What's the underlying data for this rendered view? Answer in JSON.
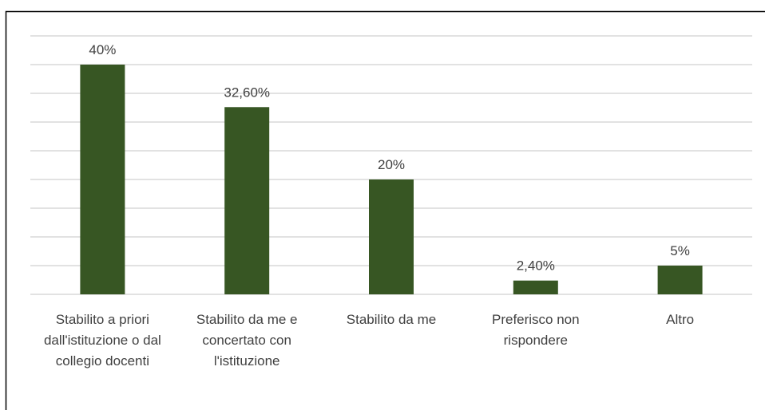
{
  "chart_data": {
    "type": "bar",
    "categories": [
      "Stabilito a priori dall'istituzione o dal collegio docenti",
      "Stabilito da me e concertato con l'istituzione",
      "Stabilito da me",
      "Preferisco non rispondere",
      "Altro"
    ],
    "values": [
      40,
      32.6,
      20,
      2.4,
      5
    ],
    "value_labels": [
      "40%",
      "32,60%",
      "20%",
      "2,40%",
      "5%"
    ],
    "color": "#375623",
    "ylim": [
      0,
      45
    ],
    "yticks": [
      0,
      5,
      10,
      15,
      20,
      25,
      30,
      35,
      40,
      45
    ],
    "grid": true
  }
}
